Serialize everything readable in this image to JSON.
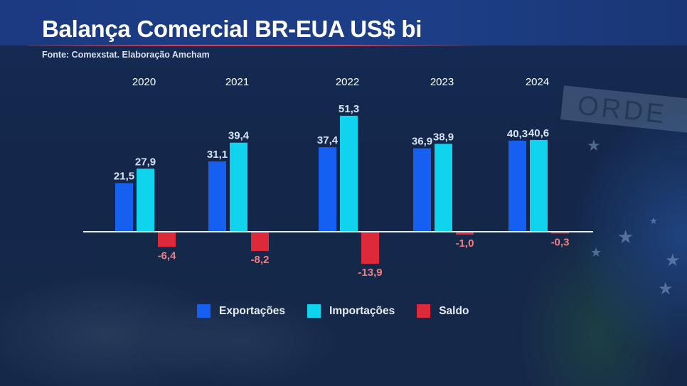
{
  "header": {
    "title": "Balança Comercial BR-EUA US$ bi",
    "source": "Fonte: Comexstat. Elaboração Amcham"
  },
  "background": {
    "banner_text": "ORDE"
  },
  "colors": {
    "exports": "#1560f0",
    "imports": "#10d4ee",
    "balance": "#dd2a3a",
    "value_label": "#d6e2f5",
    "balance_label": "#f08080"
  },
  "chart_data": {
    "type": "bar",
    "title": "Balança Comercial BR-EUA US$ bi",
    "xlabel": "",
    "ylabel": "",
    "categories": [
      "2020",
      "2021",
      "2022",
      "2023",
      "2024"
    ],
    "series": [
      {
        "name": "Exportações",
        "values": [
          21.5,
          31.1,
          37.4,
          36.9,
          40.3
        ],
        "labels": [
          "21,5",
          "31,1",
          "37,4",
          "36,9",
          "40,3"
        ]
      },
      {
        "name": "Importações",
        "values": [
          27.9,
          39.4,
          51.3,
          38.9,
          40.6
        ],
        "labels": [
          "27,9",
          "39,4",
          "51,3",
          "38,9",
          "40,6"
        ]
      },
      {
        "name": "Saldo",
        "values": [
          -6.4,
          -8.2,
          -13.9,
          -1.0,
          -0.3
        ],
        "labels": [
          "-6,4",
          "-8,2",
          "-13,9",
          "-1,0",
          "-0,3"
        ]
      }
    ],
    "ylim": [
      -13.9,
      51.3
    ],
    "grid": false,
    "legend_position": "bottom"
  }
}
